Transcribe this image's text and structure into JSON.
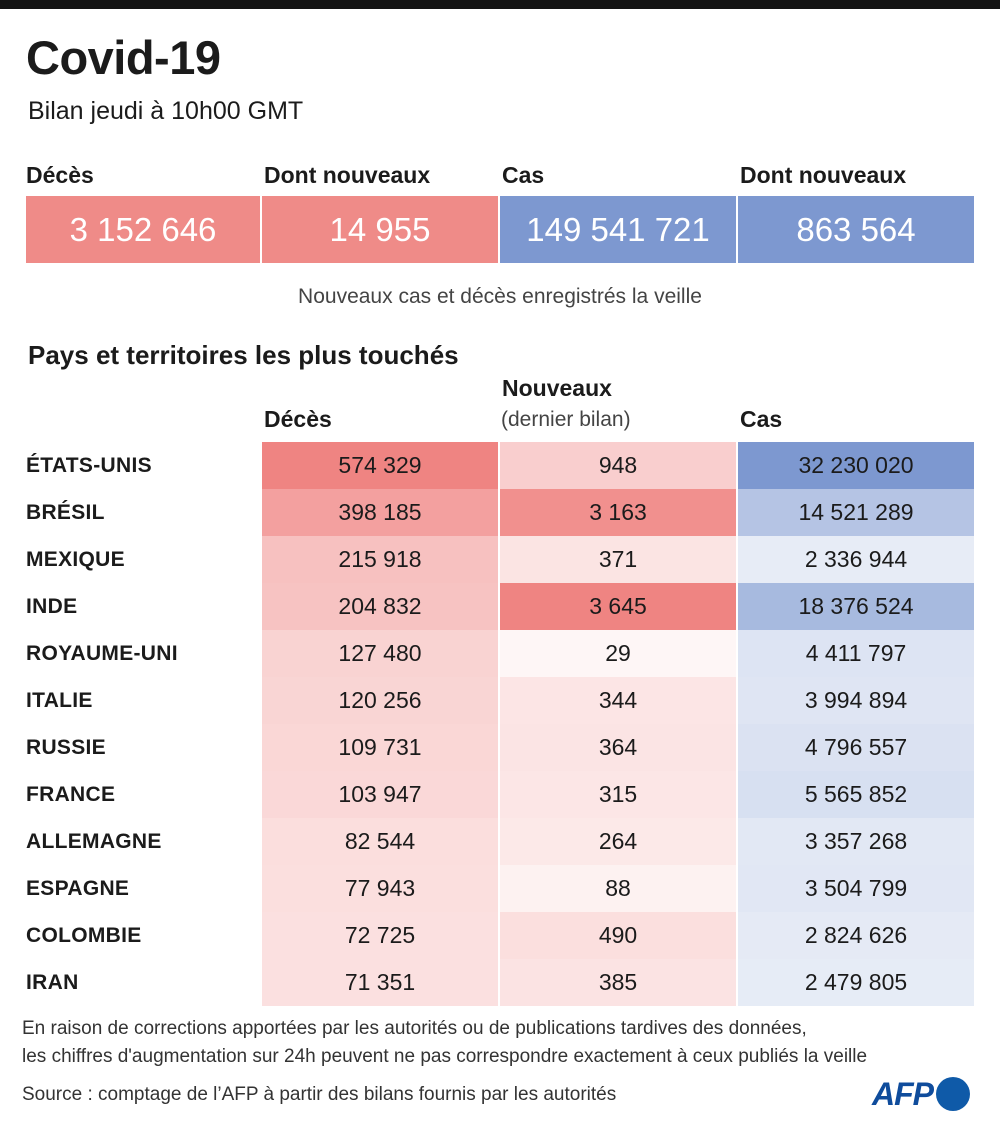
{
  "title": "Covid-19",
  "subtitle": "Bilan jeudi à 10h00 GMT",
  "summary": [
    {
      "label": "Décès",
      "value": "3 152 646",
      "color": "#ef8b88"
    },
    {
      "label": "Dont nouveaux",
      "value": "14 955",
      "color": "#ef8b88"
    },
    {
      "label": "Cas",
      "value": "149 541 721",
      "color": "#7d98d0"
    },
    {
      "label": "Dont nouveaux",
      "value": "863 564",
      "color": "#7d98d0"
    }
  ],
  "summary_note": "Nouveaux cas et décès enregistrés la veille",
  "chart_data": {
    "type": "table",
    "title": "Pays et territoires les plus touchés",
    "columns": [
      {
        "name": "Décès",
        "sublabel": ""
      },
      {
        "name": "Nouveaux",
        "sublabel": "(dernier bilan)"
      },
      {
        "name": "Cas",
        "sublabel": ""
      }
    ],
    "rows": [
      {
        "country": "ÉTATS-UNIS",
        "deces": 574329,
        "nouveaux": 948,
        "cas": 32230020,
        "deces_text": "574 329",
        "nouveaux_text": "948",
        "cas_text": "32 230 020"
      },
      {
        "country": "BRÉSIL",
        "deces": 398185,
        "nouveaux": 3163,
        "cas": 14521289,
        "deces_text": "398 185",
        "nouveaux_text": "3 163",
        "cas_text": "14 521 289"
      },
      {
        "country": "MEXIQUE",
        "deces": 215918,
        "nouveaux": 371,
        "cas": 2336944,
        "deces_text": "215 918",
        "nouveaux_text": "371",
        "cas_text": "2 336 944"
      },
      {
        "country": "INDE",
        "deces": 204832,
        "nouveaux": 3645,
        "cas": 18376524,
        "deces_text": "204 832",
        "nouveaux_text": "3 645",
        "cas_text": "18 376 524"
      },
      {
        "country": "ROYAUME-UNI",
        "deces": 127480,
        "nouveaux": 29,
        "cas": 4411797,
        "deces_text": "127 480",
        "nouveaux_text": "29",
        "cas_text": "4 411 797"
      },
      {
        "country": "ITALIE",
        "deces": 120256,
        "nouveaux": 344,
        "cas": 3994894,
        "deces_text": "120 256",
        "nouveaux_text": "344",
        "cas_text": "3 994 894"
      },
      {
        "country": "RUSSIE",
        "deces": 109731,
        "nouveaux": 364,
        "cas": 4796557,
        "deces_text": "109 731",
        "nouveaux_text": "364",
        "cas_text": "4 796 557"
      },
      {
        "country": "FRANCE",
        "deces": 103947,
        "nouveaux": 315,
        "cas": 5565852,
        "deces_text": "103 947",
        "nouveaux_text": "315",
        "cas_text": "5 565 852"
      },
      {
        "country": "ALLEMAGNE",
        "deces": 82544,
        "nouveaux": 264,
        "cas": 3357268,
        "deces_text": "82 544",
        "nouveaux_text": "264",
        "cas_text": "3 357 268"
      },
      {
        "country": "ESPAGNE",
        "deces": 77943,
        "nouveaux": 88,
        "cas": 3504799,
        "deces_text": "77 943",
        "nouveaux_text": "88",
        "cas_text": "3 504 799"
      },
      {
        "country": "COLOMBIE",
        "deces": 72725,
        "nouveaux": 490,
        "cas": 2824626,
        "deces_text": "72 725",
        "nouveaux_text": "490",
        "cas_text": "2 824 626"
      },
      {
        "country": "IRAN",
        "deces": 71351,
        "nouveaux": 385,
        "cas": 2479805,
        "deces_text": "71 351",
        "nouveaux_text": "385",
        "cas_text": "2 479 805"
      }
    ],
    "colors": {
      "deaths": "#ef8482",
      "cases": "#7d98d0"
    }
  },
  "footnote_1": "En raison de corrections apportées par les autorités ou de publications tardives des données,",
  "footnote_2": "les chiffres d'augmentation sur 24h peuvent ne pas correspondre exactement à ceux publiés la veille",
  "source": "Source : comptage de l’AFP à partir des bilans fournis par les autorités",
  "logo_text": "AFP"
}
